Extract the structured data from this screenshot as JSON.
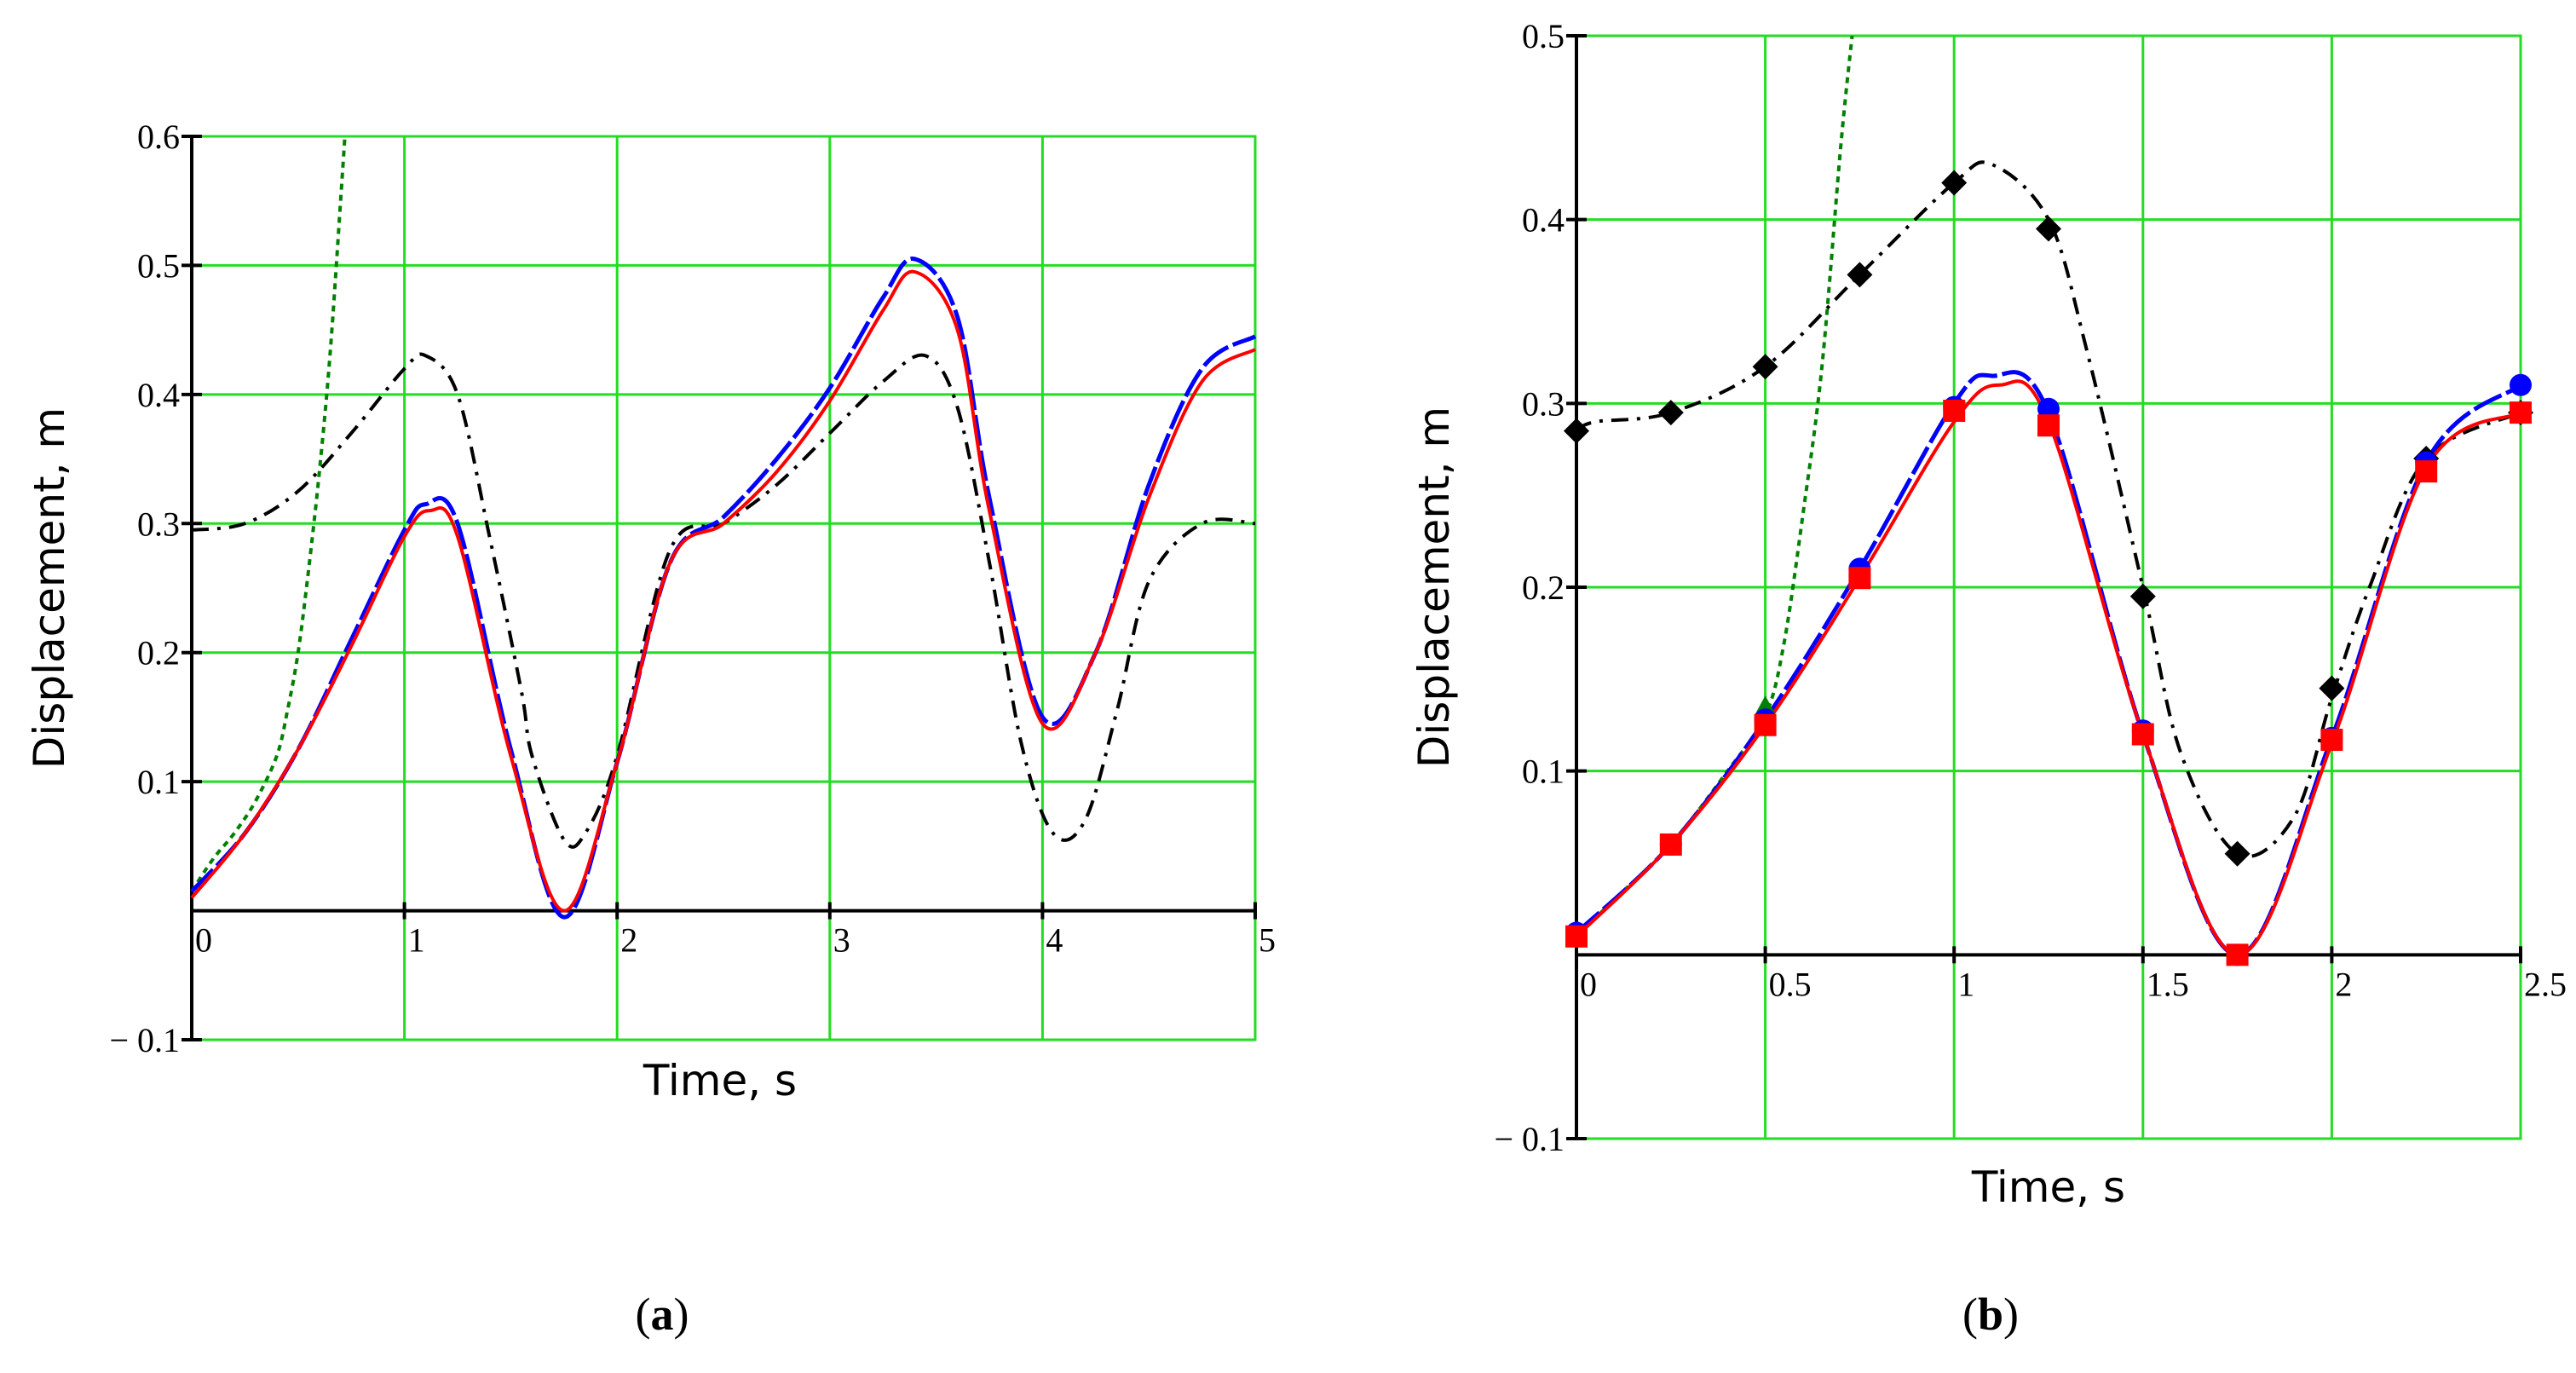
{
  "chart_data": [
    {
      "type": "line",
      "panel_label_open": "(",
      "panel_label_letter": "a",
      "panel_label_close": ")",
      "xlabel": "Time, s",
      "ylabel": "Displacement, m",
      "xlim": [
        0,
        5
      ],
      "ylim": [
        -0.1,
        0.6
      ],
      "xticks": [
        {
          "v": 0,
          "label": "0"
        },
        {
          "v": 1,
          "label": "1"
        },
        {
          "v": 2,
          "label": "2"
        },
        {
          "v": 3,
          "label": "3"
        },
        {
          "v": 4,
          "label": "4"
        },
        {
          "v": 5,
          "label": "5"
        }
      ],
      "yticks": [
        {
          "v": -0.1,
          "label": "− 0.1"
        },
        {
          "v": 0.1,
          "label": "0.1"
        },
        {
          "v": 0.2,
          "label": "0.2"
        },
        {
          "v": 0.3,
          "label": "0.3"
        },
        {
          "v": 0.4,
          "label": "0.4"
        },
        {
          "v": 0.5,
          "label": "0.5"
        },
        {
          "v": 0.6,
          "label": "0.6"
        }
      ],
      "grid": true,
      "series": [
        {
          "name": "green-dotted",
          "color": "#008000",
          "dash": "7 6",
          "width": 4,
          "x": [
            0,
            0.1,
            0.2,
            0.3,
            0.4,
            0.45,
            0.5,
            0.55,
            0.6,
            0.65,
            0.7,
            0.72
          ],
          "y": [
            0.015,
            0.04,
            0.06,
            0.085,
            0.12,
            0.155,
            0.2,
            0.265,
            0.34,
            0.43,
            0.55,
            0.6
          ]
        },
        {
          "name": "black-dash-dot",
          "color": "#000000",
          "dash": "20 10 4 10",
          "width": 4,
          "x": [
            0,
            0.25,
            0.5,
            0.75,
            1.0,
            1.1,
            1.25,
            1.4,
            1.55,
            1.6,
            1.75,
            1.85,
            2.0,
            2.25,
            2.5,
            2.75,
            3.0,
            3.25,
            3.45,
            3.6,
            3.75,
            3.9,
            4.05,
            4.2,
            4.35,
            4.5,
            4.75,
            5.0
          ],
          "y": [
            0.295,
            0.3,
            0.325,
            0.37,
            0.42,
            0.43,
            0.4,
            0.29,
            0.17,
            0.12,
            0.055,
            0.06,
            0.12,
            0.28,
            0.3,
            0.33,
            0.37,
            0.41,
            0.43,
            0.39,
            0.27,
            0.13,
            0.06,
            0.07,
            0.155,
            0.255,
            0.3,
            0.3
          ]
        },
        {
          "name": "blue-dashed",
          "color": "#0000ff",
          "dash": "36 6",
          "width": 5,
          "x": [
            0,
            0.25,
            0.5,
            0.75,
            1.0,
            1.1,
            1.25,
            1.5,
            1.75,
            2.0,
            2.25,
            2.5,
            2.75,
            3.0,
            3.25,
            3.4,
            3.6,
            3.75,
            4.0,
            4.25,
            4.5,
            4.75,
            5.0
          ],
          "y": [
            0.015,
            0.06,
            0.125,
            0.21,
            0.295,
            0.315,
            0.3,
            0.125,
            -0.005,
            0.115,
            0.27,
            0.305,
            0.35,
            0.405,
            0.475,
            0.505,
            0.46,
            0.32,
            0.15,
            0.2,
            0.33,
            0.42,
            0.445
          ]
        },
        {
          "name": "red-solid",
          "color": "#ff0000",
          "dash": "",
          "width": 4,
          "x": [
            0,
            0.25,
            0.5,
            0.75,
            1.0,
            1.12,
            1.25,
            1.5,
            1.75,
            2.0,
            2.25,
            2.5,
            2.75,
            3.0,
            3.25,
            3.4,
            3.6,
            3.75,
            4.0,
            4.25,
            4.5,
            4.75,
            5.0
          ],
          "y": [
            0.01,
            0.06,
            0.125,
            0.205,
            0.29,
            0.31,
            0.29,
            0.12,
            0.0,
            0.115,
            0.27,
            0.3,
            0.34,
            0.395,
            0.465,
            0.495,
            0.45,
            0.31,
            0.145,
            0.2,
            0.32,
            0.41,
            0.435
          ]
        }
      ]
    },
    {
      "type": "line",
      "panel_label_open": "(",
      "panel_label_letter": "b",
      "panel_label_close": ")",
      "xlabel": "Time, s",
      "ylabel": "Displacement, m",
      "xlim": [
        0,
        2.5
      ],
      "ylim": [
        -0.1,
        0.5
      ],
      "xticks": [
        {
          "v": 0,
          "label": "0"
        },
        {
          "v": 0.5,
          "label": "0.5"
        },
        {
          "v": 1,
          "label": "1"
        },
        {
          "v": 1.5,
          "label": "1.5"
        },
        {
          "v": 2,
          "label": "2"
        },
        {
          "v": 2.5,
          "label": "2.5"
        }
      ],
      "yticks": [
        {
          "v": -0.1,
          "label": "− 0.1"
        },
        {
          "v": 0.1,
          "label": "0.1"
        },
        {
          "v": 0.2,
          "label": "0.2"
        },
        {
          "v": 0.3,
          "label": "0.3"
        },
        {
          "v": 0.4,
          "label": "0.4"
        },
        {
          "v": 0.5,
          "label": "0.5"
        }
      ],
      "grid": true,
      "series": [
        {
          "name": "green-dotted",
          "color": "#008000",
          "dash": "7 6",
          "width": 4,
          "x": [
            0,
            0.1,
            0.25,
            0.4,
            0.5,
            0.55,
            0.6,
            0.65,
            0.7,
            0.73
          ],
          "y": [
            0.01,
            0.03,
            0.06,
            0.1,
            0.13,
            0.17,
            0.24,
            0.32,
            0.44,
            0.5
          ],
          "markers": [
            {
              "x": 0.5,
              "y": 0.135,
              "shape": "triangle"
            }
          ]
        },
        {
          "name": "black-dash-dot",
          "color": "#000000",
          "dash": "20 10 4 10",
          "width": 4,
          "x": [
            0,
            0.05,
            0.25,
            0.5,
            0.75,
            1.0,
            1.1,
            1.25,
            1.35,
            1.5,
            1.6,
            1.75,
            1.9,
            2.0,
            2.1,
            2.25,
            2.5
          ],
          "y": [
            0.285,
            0.29,
            0.295,
            0.32,
            0.37,
            0.42,
            0.43,
            0.4,
            0.33,
            0.2,
            0.11,
            0.055,
            0.075,
            0.14,
            0.2,
            0.27,
            0.295
          ],
          "markers": [
            {
              "x": 0,
              "y": 0.285,
              "shape": "diamond"
            },
            {
              "x": 0.25,
              "y": 0.295,
              "shape": "diamond"
            },
            {
              "x": 0.5,
              "y": 0.32,
              "shape": "diamond"
            },
            {
              "x": 0.75,
              "y": 0.37,
              "shape": "diamond"
            },
            {
              "x": 1.0,
              "y": 0.42,
              "shape": "diamond"
            },
            {
              "x": 1.25,
              "y": 0.395,
              "shape": "diamond"
            },
            {
              "x": 1.5,
              "y": 0.195,
              "shape": "diamond"
            },
            {
              "x": 1.75,
              "y": 0.055,
              "shape": "diamond"
            },
            {
              "x": 2.0,
              "y": 0.145,
              "shape": "diamond"
            },
            {
              "x": 2.25,
              "y": 0.27,
              "shape": "diamond"
            },
            {
              "x": 2.5,
              "y": 0.295,
              "shape": "diamond"
            }
          ]
        },
        {
          "name": "blue-dashed",
          "color": "#0000ff",
          "dash": "36 6",
          "width": 5,
          "x": [
            0,
            0.25,
            0.5,
            0.75,
            1.0,
            1.1,
            1.25,
            1.5,
            1.75,
            2.0,
            2.25,
            2.5
          ],
          "y": [
            0.012,
            0.06,
            0.128,
            0.21,
            0.3,
            0.315,
            0.295,
            0.12,
            0.0,
            0.118,
            0.268,
            0.31
          ],
          "markers": [
            {
              "x": 0,
              "y": 0.012,
              "shape": "circle"
            },
            {
              "x": 0.25,
              "y": 0.06,
              "shape": "circle"
            },
            {
              "x": 0.5,
              "y": 0.128,
              "shape": "circle"
            },
            {
              "x": 0.75,
              "y": 0.21,
              "shape": "circle"
            },
            {
              "x": 1.0,
              "y": 0.298,
              "shape": "circle"
            },
            {
              "x": 1.25,
              "y": 0.297,
              "shape": "circle"
            },
            {
              "x": 1.5,
              "y": 0.122,
              "shape": "circle"
            },
            {
              "x": 1.75,
              "y": 0.0,
              "shape": "circle"
            },
            {
              "x": 2.0,
              "y": 0.118,
              "shape": "circle"
            },
            {
              "x": 2.25,
              "y": 0.268,
              "shape": "circle"
            },
            {
              "x": 2.5,
              "y": 0.31,
              "shape": "circle"
            }
          ]
        },
        {
          "name": "red-solid",
          "color": "#ff0000",
          "dash": "",
          "width": 4,
          "x": [
            0,
            0.25,
            0.5,
            0.75,
            1.0,
            1.12,
            1.25,
            1.5,
            1.75,
            2.0,
            2.25,
            2.5
          ],
          "y": [
            0.01,
            0.06,
            0.125,
            0.205,
            0.29,
            0.31,
            0.29,
            0.12,
            0.0,
            0.115,
            0.265,
            0.295
          ],
          "markers": [
            {
              "x": 0,
              "y": 0.01,
              "shape": "square"
            },
            {
              "x": 0.25,
              "y": 0.06,
              "shape": "square"
            },
            {
              "x": 0.5,
              "y": 0.125,
              "shape": "square"
            },
            {
              "x": 0.75,
              "y": 0.205,
              "shape": "square"
            },
            {
              "x": 1.0,
              "y": 0.296,
              "shape": "square"
            },
            {
              "x": 1.25,
              "y": 0.288,
              "shape": "square"
            },
            {
              "x": 1.5,
              "y": 0.12,
              "shape": "square"
            },
            {
              "x": 1.75,
              "y": 0.0,
              "shape": "square"
            },
            {
              "x": 2.0,
              "y": 0.117,
              "shape": "square"
            },
            {
              "x": 2.25,
              "y": 0.263,
              "shape": "square"
            },
            {
              "x": 2.5,
              "y": 0.295,
              "shape": "square"
            }
          ]
        }
      ]
    }
  ]
}
